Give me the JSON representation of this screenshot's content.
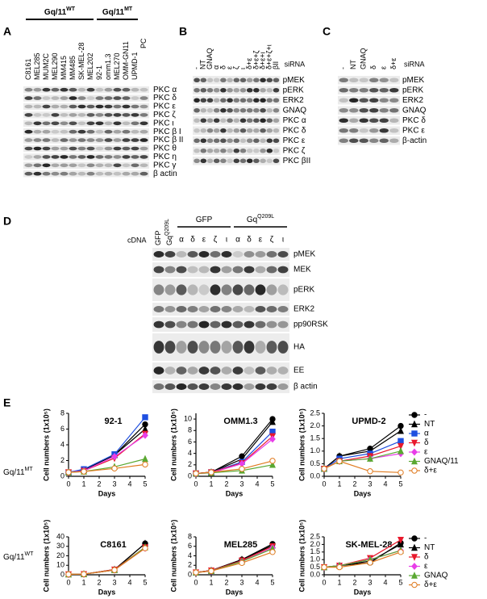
{
  "panel_a": {
    "label": "A",
    "groups": [
      {
        "text": "Gq/11",
        "sup": "WT"
      },
      {
        "text": "Gq/11",
        "sup": "MT"
      }
    ],
    "lanes": [
      "C8161",
      "MEL285",
      "MUM2C",
      "MEL290",
      "MM415",
      "MM485",
      "SK-MEL-28",
      "MEL202",
      "92-1",
      "omm1.3",
      "MEL270",
      "OMM-GN11",
      "UPMD-1"
    ],
    "extra_lane": "PC",
    "rows": [
      "PKC α",
      "PKC δ",
      "PKC ε",
      "PKC ζ",
      "PKC ι",
      "PKC β I",
      "PKC β II",
      "PKC θ",
      "PKC η",
      "PKC γ",
      "β actin"
    ]
  },
  "panel_b": {
    "label": "B",
    "treatment": "siRNA",
    "lanes": [
      "-",
      "NT",
      "GNAQ",
      "α",
      "δ",
      "ε",
      "ζ",
      "ι",
      "δ+ε",
      "δ+ε+ζ",
      "δ+ε+ι",
      "δ+ε+ζ+ι",
      "βII"
    ],
    "red_lanes": [
      8
    ],
    "rows": [
      "pMEK",
      "pERK",
      "ERK2",
      "GNAQ",
      "PKC α",
      "PKC δ",
      "PKC ε",
      "PKC ζ",
      "PKC βII"
    ]
  },
  "panel_c": {
    "label": "C",
    "treatment": "siRNA",
    "lanes": [
      "-",
      "NT",
      "GNAQ",
      "δ",
      "ε",
      "δ+ε"
    ],
    "rows": [
      "pMEK",
      "pERK",
      "ERK2",
      "GNAQ",
      "PKC δ",
      "PKC ε",
      "β-actin"
    ]
  },
  "panel_d": {
    "label": "D",
    "treatment": "cDNA",
    "singles": [
      {
        "text": "GFP"
      },
      {
        "text": "Gq",
        "sup": "Q209L"
      }
    ],
    "groups": [
      {
        "title": {
          "text": "GFP"
        },
        "lanes": [
          "α",
          "δ",
          "ε",
          "ζ",
          "ι"
        ],
        "red_lanes": []
      },
      {
        "title": {
          "text": "Gq",
          "sup": "Q209L"
        },
        "lanes": [
          "α",
          "δ",
          "ε",
          "ζ",
          "ι"
        ],
        "red_lanes": [
          1,
          2
        ]
      }
    ],
    "rows": [
      "pMEK",
      "MEK",
      "pERK",
      "ERK2",
      "pp90RSK",
      "HA",
      "EE",
      "β actin"
    ]
  },
  "panel_e": {
    "label": "E",
    "rows": [
      {
        "text": "Gq/11",
        "sup": "MT",
        "color": "#e8192c"
      },
      {
        "text": "Gq/11",
        "sup": "WT",
        "color": "#000000"
      }
    ]
  },
  "chart_data": [
    {
      "type": "line",
      "title": "92-1",
      "title_color": "#e8192c",
      "x_label": "Days",
      "y_label": "Cell numbers (1x10⁵)",
      "x": [
        0,
        1,
        3,
        5
      ],
      "xlim": [
        0,
        5
      ],
      "xticks": [
        0,
        1,
        2,
        3,
        4,
        5
      ],
      "ylim": [
        0,
        8
      ],
      "yticks": [
        0,
        2,
        4,
        6,
        8
      ],
      "series": [
        {
          "color": "#000000",
          "marker": "circle",
          "values": [
            0.5,
            0.8,
            2.7,
            6.6
          ]
        },
        {
          "color": "#000000",
          "marker": "triangle",
          "values": [
            0.5,
            0.8,
            2.7,
            6.0
          ]
        },
        {
          "color": "#1f4fe0",
          "marker": "square",
          "values": [
            0.5,
            0.9,
            2.8,
            7.5
          ]
        },
        {
          "color": "#e8192c",
          "marker": "triangle-down",
          "values": [
            0.5,
            0.7,
            2.3,
            5.4
          ]
        },
        {
          "color": "#e83ee8",
          "marker": "diamond",
          "values": [
            0.5,
            0.7,
            2.5,
            5.2
          ]
        },
        {
          "color": "#5aa832",
          "marker": "triangle",
          "values": [
            0.5,
            0.6,
            1.2,
            2.2
          ]
        },
        {
          "color": "#e07b20",
          "marker": "open-circle",
          "values": [
            0.5,
            0.6,
            1.0,
            1.5
          ]
        }
      ]
    },
    {
      "type": "line",
      "title": "OMM1.3",
      "title_color": "#e8192c",
      "x_label": "Days",
      "y_label": "Cell numbers (1x10⁵)",
      "x": [
        0,
        1,
        3,
        5
      ],
      "xlim": [
        0,
        5
      ],
      "xticks": [
        0,
        1,
        2,
        3,
        4,
        5
      ],
      "ylim": [
        0,
        11
      ],
      "yticks": [
        0,
        2,
        4,
        6,
        8,
        10
      ],
      "series": [
        {
          "color": "#000000",
          "marker": "circle",
          "values": [
            0.5,
            0.7,
            3.5,
            10.0
          ]
        },
        {
          "color": "#000000",
          "marker": "triangle",
          "values": [
            0.5,
            0.7,
            3.0,
            9.5
          ]
        },
        {
          "color": "#1f4fe0",
          "marker": "square",
          "values": [
            0.5,
            0.7,
            2.5,
            7.8
          ]
        },
        {
          "color": "#e8192c",
          "marker": "triangle-down",
          "values": [
            0.5,
            0.7,
            2.3,
            7.0
          ]
        },
        {
          "color": "#e83ee8",
          "marker": "diamond",
          "values": [
            0.5,
            0.6,
            2.2,
            6.5
          ]
        },
        {
          "color": "#5aa832",
          "marker": "triangle",
          "values": [
            0.5,
            0.6,
            1.0,
            2.0
          ]
        },
        {
          "color": "#e07b20",
          "marker": "open-circle",
          "values": [
            0.5,
            0.7,
            1.3,
            2.7
          ]
        }
      ]
    },
    {
      "type": "line",
      "title": "UPMD-2",
      "title_color": "#e8192c",
      "x_label": "Days",
      "y_label": "Cell numbers (1x10⁵)",
      "x": [
        0,
        1,
        3,
        5
      ],
      "xlim": [
        0,
        5
      ],
      "xticks": [
        0,
        1,
        2,
        3,
        4,
        5
      ],
      "ylim": [
        0,
        2.5
      ],
      "yticks": [
        {
          "value": 0,
          "label": "0.0"
        },
        0.5,
        {
          "value": 1,
          "label": "1.0"
        },
        1.5,
        {
          "value": 2,
          "label": "2.0"
        },
        2.5
      ],
      "legend": "right",
      "series": [
        {
          "name": "-",
          "color": "#000000",
          "marker": "circle",
          "values": [
            0.3,
            0.8,
            1.1,
            2.0
          ]
        },
        {
          "name": "NT",
          "color": "#000000",
          "marker": "triangle",
          "values": [
            0.3,
            0.8,
            1.0,
            1.8
          ]
        },
        {
          "name": "α",
          "color": "#1f4fe0",
          "marker": "square",
          "values": [
            0.3,
            0.7,
            0.9,
            1.4
          ]
        },
        {
          "name": "δ",
          "color": "#e8192c",
          "marker": "triangle-down",
          "values": [
            0.3,
            0.6,
            0.8,
            1.2
          ]
        },
        {
          "name": "ε",
          "color": "#e83ee8",
          "marker": "diamond",
          "values": [
            0.3,
            0.6,
            0.7,
            0.9
          ]
        },
        {
          "name": "GNAQ/11",
          "color": "#5aa832",
          "marker": "triangle",
          "values": [
            0.3,
            0.6,
            0.7,
            1.0
          ]
        },
        {
          "name": "δ+ε",
          "color": "#e07b20",
          "marker": "open-circle",
          "values": [
            0.3,
            0.6,
            0.2,
            0.15
          ]
        }
      ]
    },
    {
      "type": "line",
      "title": "C8161",
      "title_color": "#000000",
      "x_label": "Days",
      "y_label": "Cell numbers (1x10⁵)",
      "x": [
        0,
        1,
        3,
        5
      ],
      "xlim": [
        0,
        5
      ],
      "xticks": [
        0,
        1,
        2,
        3,
        4,
        5
      ],
      "ylim": [
        0,
        40
      ],
      "yticks": [
        0,
        10,
        20,
        30,
        40
      ],
      "series": [
        {
          "color": "#000000",
          "marker": "circle",
          "values": [
            0.5,
            0.7,
            5,
            33
          ]
        },
        {
          "color": "#000000",
          "marker": "triangle",
          "values": [
            0.5,
            0.7,
            5.5,
            33
          ]
        },
        {
          "color": "#e8192c",
          "marker": "triangle-down",
          "values": [
            0.5,
            0.7,
            5.5,
            29
          ]
        },
        {
          "color": "#e83ee8",
          "marker": "diamond",
          "values": [
            0.5,
            0.7,
            5,
            28
          ]
        },
        {
          "color": "#5aa832",
          "marker": "triangle",
          "values": [
            0.5,
            0.7,
            5,
            29
          ]
        },
        {
          "color": "#e07b20",
          "marker": "open-circle",
          "values": [
            0.5,
            0.7,
            5,
            28
          ]
        }
      ]
    },
    {
      "type": "line",
      "title": "MEL285",
      "title_color": "#000000",
      "x_label": "Days",
      "y_label": "Cell numbers (1x10⁵)",
      "x": [
        0,
        1,
        3,
        5
      ],
      "xlim": [
        0,
        5
      ],
      "xticks": [
        0,
        1,
        2,
        3,
        4,
        5
      ],
      "ylim": [
        0,
        8
      ],
      "yticks": [
        0,
        2,
        4,
        6,
        8
      ],
      "series": [
        {
          "color": "#000000",
          "marker": "circle",
          "values": [
            0.5,
            0.9,
            3.2,
            6.5
          ]
        },
        {
          "color": "#000000",
          "marker": "triangle",
          "values": [
            0.5,
            0.9,
            3.2,
            6.2
          ]
        },
        {
          "color": "#e8192c",
          "marker": "triangle-down",
          "values": [
            0.5,
            0.9,
            3.0,
            6.0
          ]
        },
        {
          "color": "#e83ee8",
          "marker": "diamond",
          "values": [
            0.5,
            0.8,
            2.8,
            5.7
          ]
        },
        {
          "color": "#5aa832",
          "marker": "triangle",
          "values": [
            0.5,
            0.8,
            2.8,
            5.5
          ]
        },
        {
          "color": "#e07b20",
          "marker": "open-circle",
          "values": [
            0.5,
            0.8,
            2.5,
            4.8
          ]
        }
      ]
    },
    {
      "type": "line",
      "title": "SK-MEL-28",
      "title_color": "#000000",
      "x_label": "Days",
      "y_label": "Cell numbers (1x10⁵)",
      "x": [
        0,
        1,
        3,
        5
      ],
      "xlim": [
        0,
        5
      ],
      "xticks": [
        0,
        1,
        2,
        3,
        4,
        5
      ],
      "ylim": [
        0,
        2.5
      ],
      "yticks": [
        {
          "value": 0,
          "label": "0.0"
        },
        0.5,
        {
          "value": 1,
          "label": "1.0"
        },
        1.5,
        {
          "value": 2,
          "label": "2.0"
        },
        2.5
      ],
      "legend": "right",
      "series": [
        {
          "name": "-",
          "color": "#000000",
          "marker": "circle",
          "values": [
            0.5,
            0.6,
            0.8,
            2.1
          ]
        },
        {
          "name": "NT",
          "color": "#000000",
          "marker": "triangle",
          "values": [
            0.5,
            0.6,
            0.9,
            2.0
          ]
        },
        {
          "name": "δ",
          "color": "#e8192c",
          "marker": "triangle-down",
          "values": [
            0.5,
            0.6,
            1.1,
            2.3
          ]
        },
        {
          "name": "ε",
          "color": "#e83ee8",
          "marker": "diamond",
          "values": [
            0.5,
            0.6,
            1.0,
            1.6
          ]
        },
        {
          "name": "GNAQ",
          "color": "#5aa832",
          "marker": "triangle",
          "values": [
            0.5,
            0.6,
            1.0,
            1.6
          ]
        },
        {
          "name": "δ+ε",
          "color": "#e07b20",
          "marker": "open-circle",
          "values": [
            0.5,
            0.5,
            0.8,
            1.5
          ]
        }
      ]
    }
  ]
}
